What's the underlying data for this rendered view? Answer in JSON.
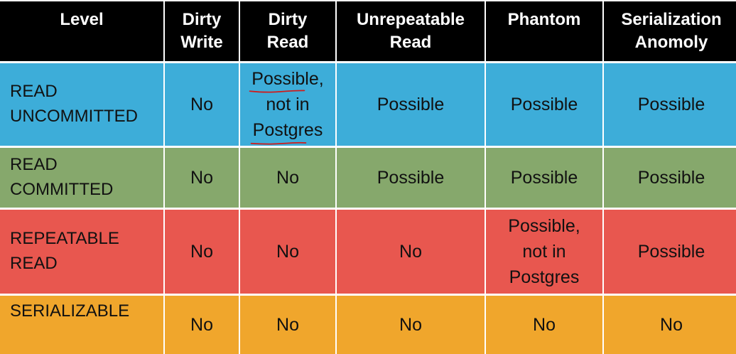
{
  "colors": {
    "header_bg": "#000000",
    "read_uncommitted_bg": "#3dadd9",
    "read_committed_bg": "#86a86c",
    "repeatable_read_bg": "#e8574f",
    "serializable_bg": "#f0a62c",
    "annotation_ink": "#d11a1a"
  },
  "headers": {
    "level": "Level",
    "dirty_write": [
      "Dirty",
      "Write"
    ],
    "dirty_read": [
      "Dirty",
      "Read"
    ],
    "unrepeatable_read": [
      "Unrepeatable",
      "Read"
    ],
    "phantom": "Phantom",
    "serialization_anomaly": [
      "Serialization",
      "Anomoly"
    ]
  },
  "rows": [
    {
      "level": [
        "READ",
        "UNCOMMITTED"
      ],
      "dirty_write": "No",
      "dirty_read": [
        "Possible,",
        "not in",
        "Postgres"
      ],
      "unrepeatable_read": "Possible",
      "phantom": "Possible",
      "serialization_anomaly": "Possible"
    },
    {
      "level": [
        "READ",
        "COMMITTED"
      ],
      "dirty_write": "No",
      "dirty_read": "No",
      "unrepeatable_read": "Possible",
      "phantom": "Possible",
      "serialization_anomaly": "Possible"
    },
    {
      "level": [
        "REPEATABLE",
        "READ"
      ],
      "dirty_write": "No",
      "dirty_read": "No",
      "unrepeatable_read": "No",
      "phantom": [
        "Possible,",
        "not in",
        "Postgres"
      ],
      "serialization_anomaly": "Possible"
    },
    {
      "level": "SERIALIZABLE",
      "dirty_write": "No",
      "dirty_read": "No",
      "unrepeatable_read": "No",
      "phantom": "No",
      "serialization_anomaly": "No"
    }
  ]
}
